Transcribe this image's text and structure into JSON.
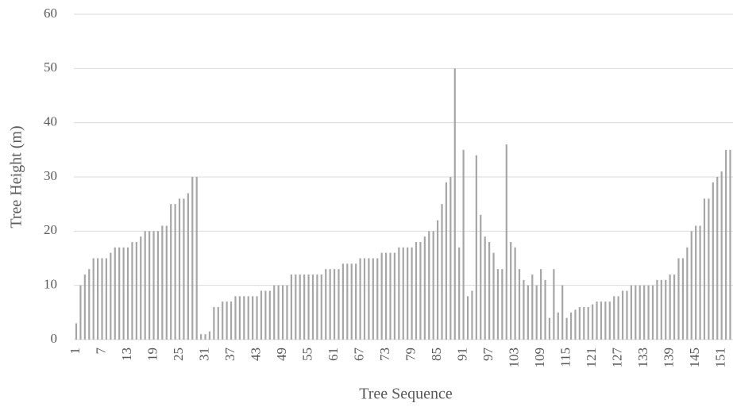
{
  "chart_data": {
    "type": "bar",
    "xlabel": "Tree Sequence",
    "ylabel": "Tree Height (m)",
    "categories": [
      "1",
      null,
      null,
      null,
      null,
      null,
      "7",
      null,
      null,
      null,
      null,
      null,
      "13",
      null,
      null,
      null,
      null,
      null,
      "19",
      null,
      null,
      null,
      null,
      null,
      "25",
      null,
      null,
      null,
      null,
      null,
      "31",
      null,
      null,
      null,
      null,
      null,
      "37",
      null,
      null,
      null,
      null,
      null,
      "43",
      null,
      null,
      null,
      null,
      null,
      "49",
      null,
      null,
      null,
      null,
      null,
      "55",
      null,
      null,
      null,
      null,
      null,
      "61",
      null,
      null,
      null,
      null,
      null,
      "67",
      null,
      null,
      null,
      null,
      null,
      "73",
      null,
      null,
      null,
      null,
      null,
      "79",
      null,
      null,
      null,
      null,
      null,
      "85",
      null,
      null,
      null,
      null,
      null,
      "91",
      null,
      null,
      null,
      null,
      null,
      "97",
      null,
      null,
      null,
      null,
      null,
      "103",
      null,
      null,
      null,
      null,
      null,
      "109",
      null,
      null,
      null,
      null,
      null,
      "115",
      null,
      null,
      null,
      null,
      null,
      "121",
      null,
      null,
      null,
      null,
      null,
      "127",
      null,
      null,
      null,
      null,
      null,
      "133",
      null,
      null,
      null,
      null,
      null,
      "139",
      null,
      null,
      null,
      null,
      null,
      "145",
      null,
      null,
      null,
      null,
      null,
      "151",
      null,
      null
    ],
    "values": [
      3,
      10,
      12,
      13,
      15,
      15,
      15,
      15,
      16,
      17,
      17,
      17,
      17,
      18,
      18,
      19,
      20,
      20,
      20,
      20,
      21,
      21,
      25,
      25,
      26,
      26,
      27,
      30,
      30,
      1,
      1,
      1.5,
      6,
      6,
      7,
      7,
      7,
      8,
      8,
      8,
      8,
      8,
      8,
      9,
      9,
      9,
      10,
      10,
      10,
      10,
      12,
      12,
      12,
      12,
      12,
      12,
      12,
      12,
      13,
      13,
      13,
      13,
      14,
      14,
      14,
      14,
      15,
      15,
      15,
      15,
      15,
      16,
      16,
      16,
      16,
      17,
      17,
      17,
      17,
      18,
      18,
      19,
      20,
      20,
      22,
      25,
      29,
      30,
      50,
      17,
      35,
      8,
      9,
      34,
      23,
      19,
      18,
      16,
      13,
      13,
      36,
      18,
      17,
      13,
      11,
      10,
      12,
      10,
      13,
      11,
      4,
      13,
      5,
      10,
      4,
      5,
      5.5,
      6,
      6,
      6,
      6.5,
      7,
      7,
      7,
      7,
      8,
      8,
      9,
      9,
      10,
      10,
      10,
      10,
      10,
      10,
      11,
      11,
      11,
      12,
      12,
      15,
      15,
      17,
      20,
      21,
      21,
      26,
      26,
      29,
      30,
      31,
      35,
      35
    ],
    "color": "#a6a6a6",
    "ylim": [
      0,
      60
    ],
    "yticks": [
      0,
      10,
      20,
      30,
      40,
      50,
      60
    ],
    "grid": true
  }
}
